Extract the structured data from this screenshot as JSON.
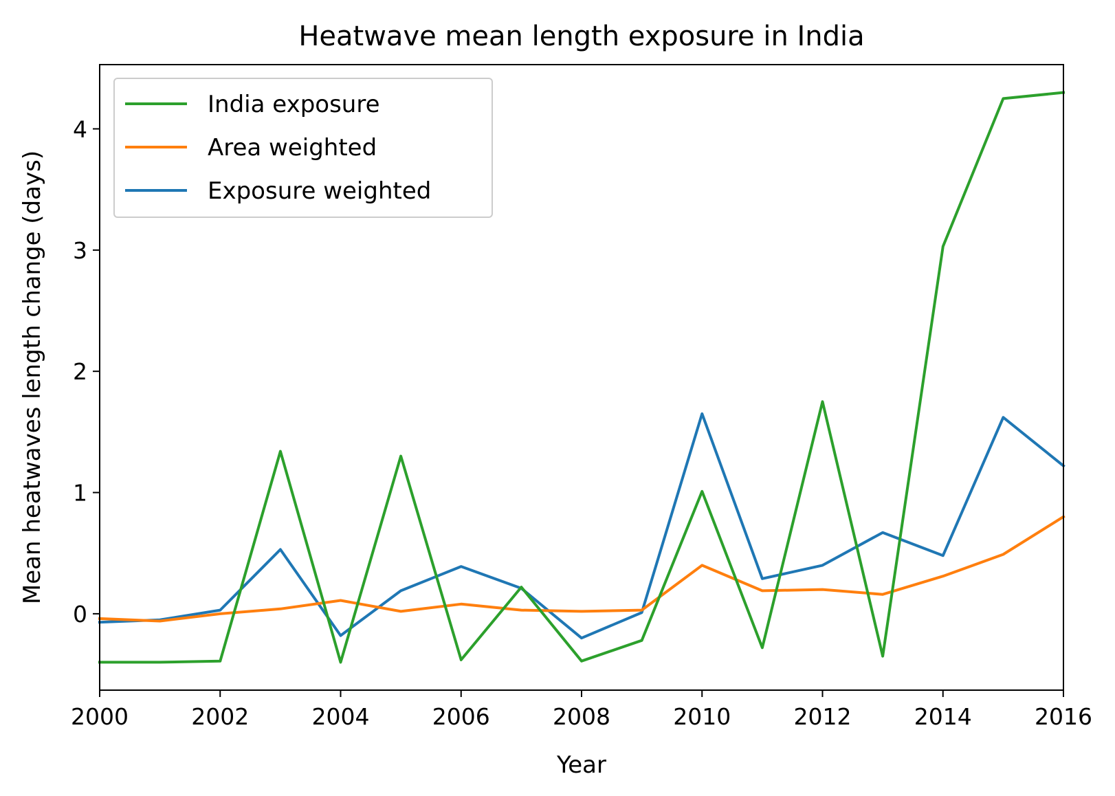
{
  "chart_data": {
    "type": "line",
    "title": "Heatwave mean length exposure in India",
    "xlabel": "Year",
    "ylabel": "Mean heatwaves length change (days)",
    "x": [
      2000,
      2001,
      2002,
      2003,
      2004,
      2005,
      2006,
      2007,
      2008,
      2009,
      2010,
      2011,
      2012,
      2013,
      2014,
      2015,
      2016
    ],
    "xlim": [
      2000,
      2016
    ],
    "ylim": [
      -0.63,
      4.53
    ],
    "xticks": [
      2000,
      2002,
      2004,
      2006,
      2008,
      2010,
      2012,
      2014,
      2016
    ],
    "yticks": [
      0,
      1,
      2,
      3,
      4
    ],
    "grid": false,
    "legend_position": "upper-left",
    "series": [
      {
        "name": "India exposure",
        "color": "#2ca02c",
        "values": [
          -0.4,
          -0.4,
          -0.39,
          1.34,
          -0.4,
          1.3,
          -0.38,
          0.22,
          -0.39,
          -0.22,
          1.01,
          -0.28,
          1.75,
          -0.35,
          3.03,
          4.25,
          4.3
        ]
      },
      {
        "name": "Area weighted",
        "color": "#ff7f0e",
        "values": [
          -0.04,
          -0.06,
          0.0,
          0.04,
          0.11,
          0.02,
          0.08,
          0.03,
          0.02,
          0.03,
          0.4,
          0.19,
          0.2,
          0.16,
          0.31,
          0.49,
          0.8
        ]
      },
      {
        "name": "Exposure weighted",
        "color": "#1f77b4",
        "values": [
          -0.07,
          -0.05,
          0.03,
          0.53,
          -0.18,
          0.19,
          0.39,
          0.21,
          -0.2,
          0.01,
          1.65,
          0.29,
          0.4,
          0.67,
          0.48,
          1.62,
          1.22
        ]
      }
    ]
  }
}
